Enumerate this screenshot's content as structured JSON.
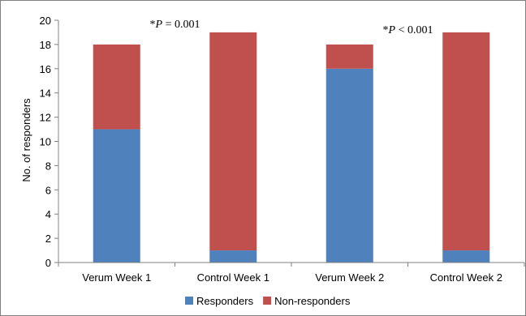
{
  "chart_data": {
    "type": "bar",
    "stacked": true,
    "categories": [
      "Verum Week 1",
      "Control Week 1",
      "Verum Week 2",
      "Control Week 2"
    ],
    "series": [
      {
        "name": "Responders",
        "values": [
          11,
          1,
          16,
          1
        ],
        "color": "#4F81BD"
      },
      {
        "name": "Non-responders",
        "values": [
          7,
          18,
          2,
          18
        ],
        "color": "#C0504D"
      }
    ],
    "ylabel": "No. of responders",
    "xlabel": "",
    "ylim": [
      0,
      20
    ],
    "yticks": [
      0,
      2,
      4,
      6,
      8,
      10,
      12,
      14,
      16,
      18,
      20
    ],
    "grid": false,
    "legend_position": "bottom",
    "annotations": [
      {
        "star": "*",
        "p": "P",
        "rest": " = 0.001",
        "between": [
          "Verum Week 1",
          "Control Week 1"
        ]
      },
      {
        "star": "*",
        "p": "P",
        "rest": " < 0.001",
        "between": [
          "Verum Week 2",
          "Control Week 2"
        ]
      }
    ]
  }
}
